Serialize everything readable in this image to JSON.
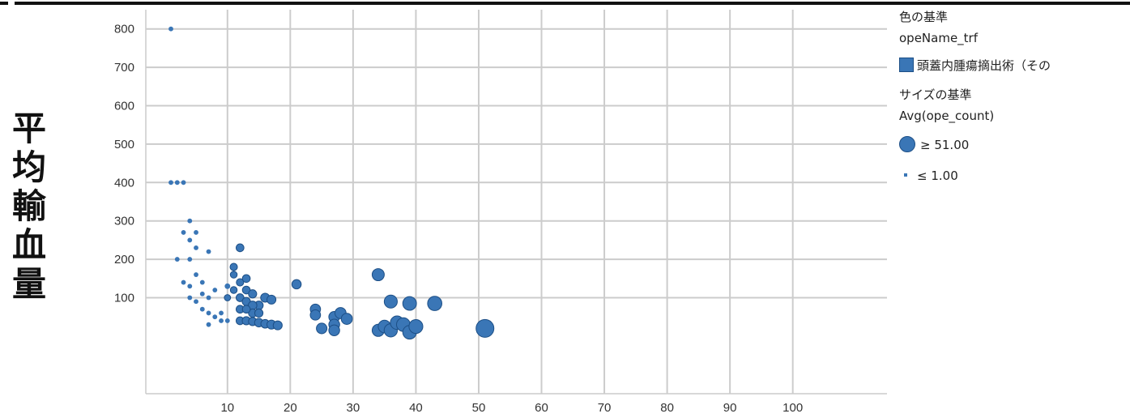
{
  "y_axis_title": "平均輸血量",
  "legend": {
    "color_heading": "色の基準",
    "color_field": "opeName_trf",
    "color_item": "頭蓋内腫瘍摘出術（その",
    "size_heading": "サイズの基準",
    "size_field": "Avg(ope_count)",
    "size_max_label": "≥ 51.00",
    "size_min_label": "≤ 1.00"
  },
  "colors": {
    "marker_fill": "#3a76b6",
    "marker_stroke": "#1d4f86",
    "grid": "#cccccc"
  },
  "chart_data": {
    "type": "scatter",
    "xlim": [
      -3,
      115
    ],
    "ylim": [
      -150,
      850
    ],
    "x_ticks": [
      10,
      20,
      30,
      40,
      50,
      60,
      70,
      80,
      90,
      100
    ],
    "y_ticks": [
      100,
      200,
      300,
      400,
      500,
      600,
      700,
      800
    ],
    "grid": true,
    "legend_position": "right",
    "series": [
      {
        "points": [
          {
            "x": 1,
            "y": 800,
            "s": 1
          },
          {
            "x": 1,
            "y": 400,
            "s": 1
          },
          {
            "x": 2,
            "y": 400,
            "s": 1
          },
          {
            "x": 3,
            "y": 400,
            "s": 1
          },
          {
            "x": 4,
            "y": 300,
            "s": 1
          },
          {
            "x": 3,
            "y": 270,
            "s": 1
          },
          {
            "x": 5,
            "y": 270,
            "s": 1
          },
          {
            "x": 4,
            "y": 250,
            "s": 1
          },
          {
            "x": 5,
            "y": 230,
            "s": 1
          },
          {
            "x": 2,
            "y": 200,
            "s": 1
          },
          {
            "x": 4,
            "y": 200,
            "s": 1
          },
          {
            "x": 7,
            "y": 220,
            "s": 1
          },
          {
            "x": 5,
            "y": 160,
            "s": 1
          },
          {
            "x": 3,
            "y": 140,
            "s": 1
          },
          {
            "x": 4,
            "y": 130,
            "s": 1
          },
          {
            "x": 6,
            "y": 140,
            "s": 1
          },
          {
            "x": 4,
            "y": 100,
            "s": 1
          },
          {
            "x": 5,
            "y": 90,
            "s": 1
          },
          {
            "x": 6,
            "y": 110,
            "s": 1
          },
          {
            "x": 7,
            "y": 100,
            "s": 1
          },
          {
            "x": 8,
            "y": 120,
            "s": 1
          },
          {
            "x": 6,
            "y": 70,
            "s": 1
          },
          {
            "x": 7,
            "y": 60,
            "s": 1
          },
          {
            "x": 8,
            "y": 50,
            "s": 1
          },
          {
            "x": 9,
            "y": 60,
            "s": 1
          },
          {
            "x": 7,
            "y": 30,
            "s": 1
          },
          {
            "x": 9,
            "y": 40,
            "s": 1
          },
          {
            "x": 10,
            "y": 40,
            "s": 1
          },
          {
            "x": 10,
            "y": 130,
            "s": 2
          },
          {
            "x": 11,
            "y": 180,
            "s": 5
          },
          {
            "x": 12,
            "y": 230,
            "s": 6
          },
          {
            "x": 11,
            "y": 160,
            "s": 4
          },
          {
            "x": 10,
            "y": 100,
            "s": 3
          },
          {
            "x": 11,
            "y": 120,
            "s": 4
          },
          {
            "x": 12,
            "y": 140,
            "s": 5
          },
          {
            "x": 13,
            "y": 150,
            "s": 6
          },
          {
            "x": 12,
            "y": 100,
            "s": 6
          },
          {
            "x": 13,
            "y": 120,
            "s": 6
          },
          {
            "x": 14,
            "y": 110,
            "s": 7
          },
          {
            "x": 13,
            "y": 90,
            "s": 7
          },
          {
            "x": 15,
            "y": 80,
            "s": 8
          },
          {
            "x": 14,
            "y": 80,
            "s": 8
          },
          {
            "x": 16,
            "y": 100,
            "s": 9
          },
          {
            "x": 17,
            "y": 95,
            "s": 9
          },
          {
            "x": 14,
            "y": 60,
            "s": 7
          },
          {
            "x": 15,
            "y": 60,
            "s": 7
          },
          {
            "x": 12,
            "y": 70,
            "s": 6
          },
          {
            "x": 13,
            "y": 70,
            "s": 6
          },
          {
            "x": 12,
            "y": 40,
            "s": 6
          },
          {
            "x": 13,
            "y": 40,
            "s": 7
          },
          {
            "x": 14,
            "y": 38,
            "s": 7
          },
          {
            "x": 15,
            "y": 35,
            "s": 8
          },
          {
            "x": 16,
            "y": 32,
            "s": 8
          },
          {
            "x": 17,
            "y": 30,
            "s": 9
          },
          {
            "x": 18,
            "y": 28,
            "s": 9
          },
          {
            "x": 21,
            "y": 135,
            "s": 10
          },
          {
            "x": 24,
            "y": 70,
            "s": 13
          },
          {
            "x": 24,
            "y": 55,
            "s": 13
          },
          {
            "x": 25,
            "y": 20,
            "s": 14
          },
          {
            "x": 27,
            "y": 50,
            "s": 15
          },
          {
            "x": 27,
            "y": 30,
            "s": 15
          },
          {
            "x": 27,
            "y": 15,
            "s": 15
          },
          {
            "x": 28,
            "y": 60,
            "s": 16
          },
          {
            "x": 29,
            "y": 45,
            "s": 16
          },
          {
            "x": 34,
            "y": 160,
            "s": 20
          },
          {
            "x": 34,
            "y": 15,
            "s": 20
          },
          {
            "x": 35,
            "y": 25,
            "s": 22
          },
          {
            "x": 36,
            "y": 90,
            "s": 24
          },
          {
            "x": 36,
            "y": 15,
            "s": 25
          },
          {
            "x": 37,
            "y": 35,
            "s": 26
          },
          {
            "x": 38,
            "y": 30,
            "s": 27
          },
          {
            "x": 39,
            "y": 85,
            "s": 27
          },
          {
            "x": 39,
            "y": 10,
            "s": 27
          },
          {
            "x": 40,
            "y": 25,
            "s": 28
          },
          {
            "x": 43,
            "y": 85,
            "s": 30
          },
          {
            "x": 51,
            "y": 20,
            "s": 51
          }
        ]
      }
    ]
  }
}
